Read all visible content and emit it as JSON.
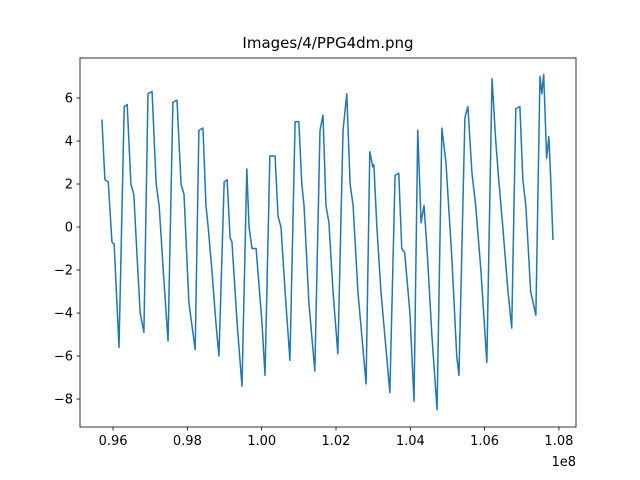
{
  "chart_data": {
    "type": "line",
    "title": "Images/4/PPG4dm.png",
    "x_offset_label": "1e8",
    "x": [
      0.957,
      0.9578,
      0.9587,
      0.9597,
      0.9603,
      0.9616,
      0.963,
      0.9638,
      0.9648,
      0.9656,
      0.9665,
      0.9673,
      0.9683,
      0.9694,
      0.9705,
      0.9716,
      0.9724,
      0.9735,
      0.9748,
      0.9761,
      0.9772,
      0.9783,
      0.9791,
      0.9804,
      0.9821,
      0.9831,
      0.9842,
      0.985,
      0.9856,
      0.9866,
      0.9877,
      0.9885,
      0.9899,
      0.9907,
      0.9915,
      0.992,
      0.9934,
      0.9947,
      0.996,
      0.9966,
      0.9974,
      0.9985,
      1.0001,
      1.0009,
      1.0022,
      1.0036,
      1.0044,
      1.0052,
      1.0063,
      1.0076,
      1.009,
      1.01,
      1.0108,
      1.0114,
      1.0127,
      1.0143,
      1.0157,
      1.0165,
      1.0173,
      1.0181,
      1.0192,
      1.0205,
      1.0219,
      1.0229,
      1.0238,
      1.0246,
      1.0259,
      1.0281,
      1.0291,
      1.0299,
      1.0302,
      1.031,
      1.0321,
      1.0345,
      1.0359,
      1.0369,
      1.0377,
      1.0385,
      1.0399,
      1.041,
      1.042,
      1.0429,
      1.0437,
      1.0445,
      1.0458,
      1.0472,
      1.0485,
      1.0496,
      1.0512,
      1.0525,
      1.0531,
      1.0547,
      1.0555,
      1.0566,
      1.0576,
      1.059,
      1.0606,
      1.062,
      1.063,
      1.0638,
      1.0649,
      1.0663,
      1.0673,
      1.0684,
      1.0695,
      1.0703,
      1.0711,
      1.0724,
      1.0738,
      1.0749,
      1.0754,
      1.0759,
      1.0767,
      1.0773,
      1.0778,
      1.0784
    ],
    "series": [
      {
        "color": "#1f77b4",
        "values": [
          5.0,
          2.2,
          2.1,
          -0.7,
          -0.8,
          -5.6,
          5.6,
          5.7,
          2.0,
          1.5,
          -1.5,
          -4.0,
          -4.9,
          6.2,
          6.3,
          2.0,
          1.0,
          -2.0,
          -5.3,
          5.8,
          5.9,
          2.0,
          1.5,
          -3.5,
          -5.7,
          4.5,
          4.6,
          1.0,
          0.0,
          -2.0,
          -4.5,
          -6.0,
          2.1,
          2.2,
          -0.5,
          -0.7,
          -4.5,
          -7.4,
          2.7,
          0.0,
          -1.0,
          -1.0,
          -4.5,
          -6.9,
          3.3,
          3.3,
          0.5,
          0.0,
          -3.0,
          -6.2,
          4.9,
          4.9,
          2.0,
          1.0,
          -3.5,
          -6.7,
          4.5,
          5.2,
          1.0,
          0.2,
          -3.0,
          -5.9,
          4.5,
          6.2,
          2.0,
          1.0,
          -3.0,
          -7.3,
          3.5,
          2.8,
          2.9,
          0.0,
          -3.0,
          -7.7,
          2.4,
          2.5,
          -1.0,
          -1.2,
          -4.0,
          -8.1,
          4.5,
          0.2,
          1.0,
          -1.0,
          -5.0,
          -8.5,
          4.6,
          3.0,
          -1.5,
          -6.0,
          -6.9,
          5.1,
          5.6,
          2.5,
          1.0,
          -2.0,
          -6.3,
          6.9,
          4.0,
          2.2,
          0.0,
          -3.0,
          -4.7,
          5.5,
          5.6,
          2.2,
          1.0,
          -3.0,
          -4.1,
          7.0,
          6.2,
          7.1,
          3.2,
          4.2,
          2.2,
          -0.6
        ]
      }
    ],
    "xlim": [
      0.9511,
      1.0846
    ],
    "ylim": [
      -9.3,
      7.86
    ],
    "xticks": [
      0.96,
      0.98,
      {
        "value": 1.0,
        "label": "1.00"
      },
      1.02,
      1.04,
      1.06,
      1.08
    ],
    "yticks": [
      {
        "value": -8,
        "label": "−8"
      },
      {
        "value": -6,
        "label": "−6"
      },
      {
        "value": -4,
        "label": "−4"
      },
      {
        "value": -2,
        "label": "−2"
      },
      0,
      2,
      4,
      6
    ]
  }
}
